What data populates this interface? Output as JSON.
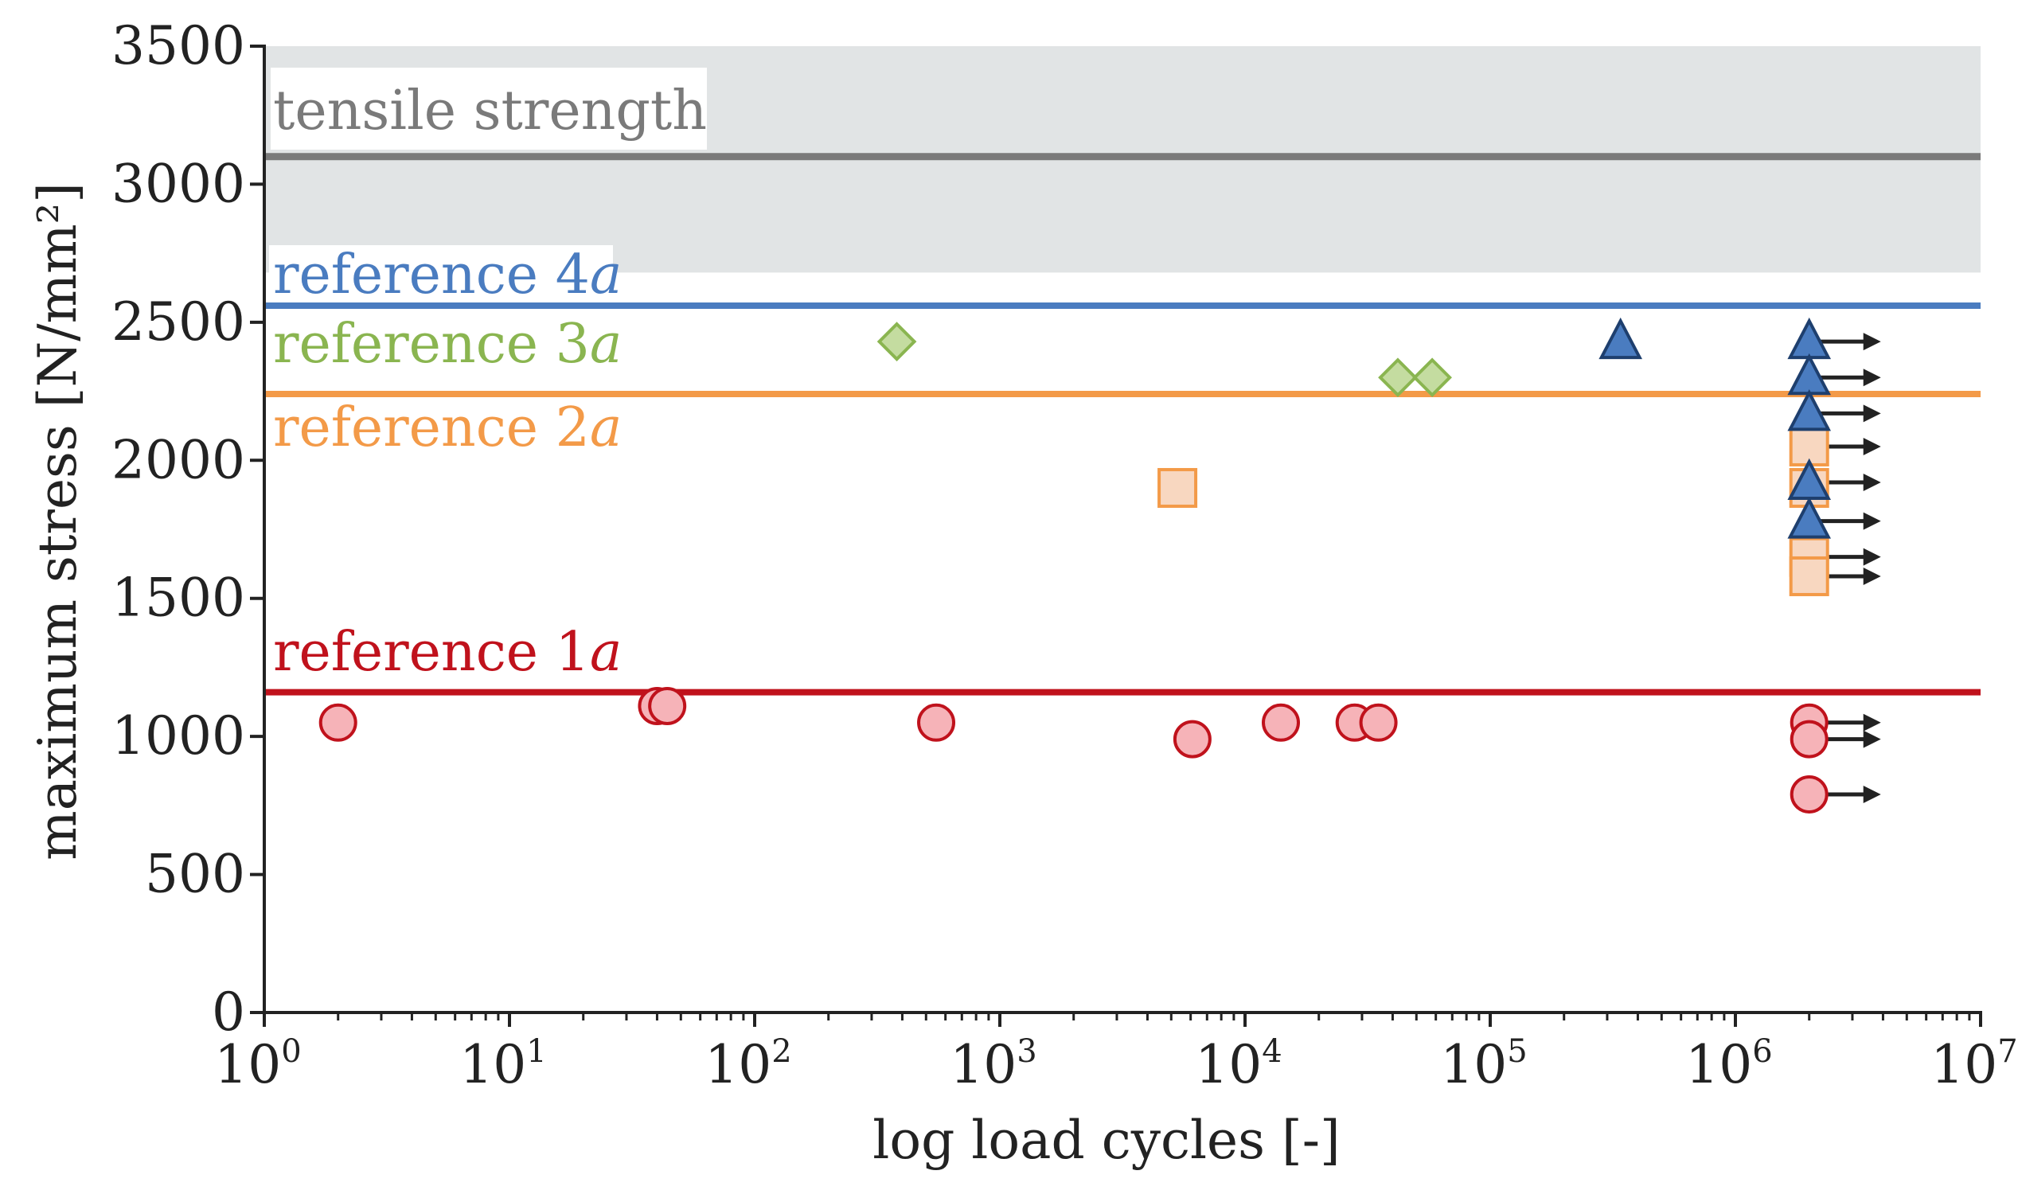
{
  "chart_data": {
    "type": "scatter",
    "xscale": "log10",
    "xlim": [
      1,
      10000000
    ],
    "ylim": [
      0,
      3500
    ],
    "xlabel": "log load cycles [-]",
    "ylabel": "maximum stress [N/mm²]",
    "x_ticks": [
      {
        "base": "10",
        "exp": "0",
        "value": 1
      },
      {
        "base": "10",
        "exp": "1",
        "value": 10
      },
      {
        "base": "10",
        "exp": "2",
        "value": 100
      },
      {
        "base": "10",
        "exp": "3",
        "value": 1000
      },
      {
        "base": "10",
        "exp": "4",
        "value": 10000
      },
      {
        "base": "10",
        "exp": "5",
        "value": 100000
      },
      {
        "base": "10",
        "exp": "6",
        "value": 1000000
      },
      {
        "base": "10",
        "exp": "7",
        "value": 10000000
      }
    ],
    "y_ticks": [
      {
        "label": "0",
        "value": 0
      },
      {
        "label": "500",
        "value": 500
      },
      {
        "label": "1000",
        "value": 1000
      },
      {
        "label": "1500",
        "value": 1500
      },
      {
        "label": "2000",
        "value": 2000
      },
      {
        "label": "2500",
        "value": 2500
      },
      {
        "label": "3000",
        "value": 3000
      },
      {
        "label": "3500",
        "value": 3500
      }
    ],
    "tensile_band": {
      "label": "tensile strength",
      "y_low": 2680,
      "y_high": 3500,
      "line_value": 3100,
      "band_color": "#e1e4e5",
      "line_color": "#7a7a7a"
    },
    "reference_lines": [
      {
        "label": "reference 4",
        "suffix": "a",
        "value": 2560,
        "color": "#4a7cc0"
      },
      {
        "label": "reference 3",
        "suffix": "a",
        "value": 2560,
        "color": "#8ab550",
        "text_color": "#8ab550"
      },
      {
        "label": "reference 2",
        "suffix": "a",
        "value": 2240,
        "color": "#f39a48"
      },
      {
        "label": "reference 1",
        "suffix": "a",
        "value": 1160,
        "color": "#c0121c"
      }
    ],
    "series": [
      {
        "name": "reference 1a",
        "marker": "circle",
        "fill": "#f6b3b8",
        "stroke": "#c0121c",
        "points": [
          {
            "x": 2,
            "y": 1050
          },
          {
            "x": 40,
            "y": 1110
          },
          {
            "x": 44,
            "y": 1110
          },
          {
            "x": 550,
            "y": 1050
          },
          {
            "x": 6100,
            "y": 990
          },
          {
            "x": 14000,
            "y": 1050
          },
          {
            "x": 28000,
            "y": 1050
          },
          {
            "x": 35000,
            "y": 1050
          },
          {
            "x": 2000000,
            "y": 1050,
            "runout": true
          },
          {
            "x": 2000000,
            "y": 990,
            "runout": true
          },
          {
            "x": 2000000,
            "y": 790,
            "runout": true
          }
        ]
      },
      {
        "name": "reference 2a",
        "marker": "square",
        "fill": "#f8d7c0",
        "stroke": "#f39a48",
        "points": [
          {
            "x": 5300,
            "y": 1900
          },
          {
            "x": 2000000,
            "y": 2050,
            "runout": true
          },
          {
            "x": 2000000,
            "y": 1900,
            "runout": true
          },
          {
            "x": 2000000,
            "y": 1650,
            "runout": true
          },
          {
            "x": 2000000,
            "y": 1580,
            "runout": true
          }
        ]
      },
      {
        "name": "reference 3a",
        "marker": "diamond",
        "fill": "#c4dca0",
        "stroke": "#8ab550",
        "points": [
          {
            "x": 380,
            "y": 2430
          },
          {
            "x": 42000,
            "y": 2300
          },
          {
            "x": 58000,
            "y": 2300
          }
        ]
      },
      {
        "name": "reference 4a",
        "marker": "triangle",
        "fill": "#4a7cc0",
        "stroke": "#1e3f6e",
        "points": [
          {
            "x": 340000,
            "y": 2430
          },
          {
            "x": 2000000,
            "y": 2430,
            "runout": true
          },
          {
            "x": 2000000,
            "y": 2300,
            "runout": true
          },
          {
            "x": 2000000,
            "y": 2170,
            "runout": true
          },
          {
            "x": 2000000,
            "y": 1920,
            "runout": true
          },
          {
            "x": 2000000,
            "y": 1780,
            "runout": true
          }
        ]
      }
    ],
    "runout_arrows": [
      {
        "x": 2000000,
        "y": 2430
      },
      {
        "x": 2000000,
        "y": 2300
      },
      {
        "x": 2000000,
        "y": 2170
      },
      {
        "x": 2000000,
        "y": 2050
      },
      {
        "x": 2000000,
        "y": 1920
      },
      {
        "x": 2000000,
        "y": 1780
      },
      {
        "x": 2000000,
        "y": 1650
      },
      {
        "x": 2000000,
        "y": 1580
      },
      {
        "x": 2000000,
        "y": 1050
      },
      {
        "x": 2000000,
        "y": 990
      },
      {
        "x": 2000000,
        "y": 790
      }
    ],
    "arrow_color": "#222222"
  }
}
